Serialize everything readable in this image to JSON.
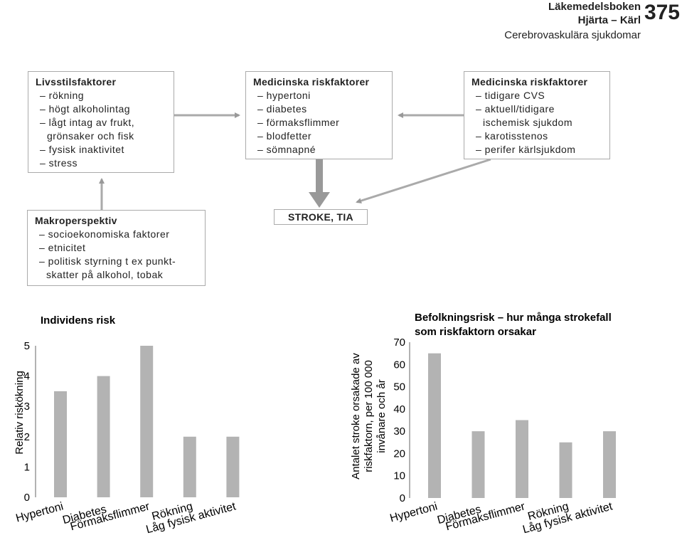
{
  "header": {
    "book": "Läkemedelsboken",
    "section": "Hjärta – Kärl",
    "chapter": "Cerebrovaskulära sjukdomar",
    "page": "375"
  },
  "boxes": [
    {
      "title": "Livsstilsfaktorer",
      "items": [
        "– rökning",
        "– högt alkoholintag",
        "– lågt intag av frukt, grönsaker och fisk",
        "– fysisk inaktivitet",
        "– stress"
      ]
    },
    {
      "title": "Medicinska riskfaktorer",
      "items": [
        "– hypertoni",
        "– diabetes",
        "– förmaksflimmer",
        "– blodfetter",
        "– sömnapné"
      ]
    },
    {
      "title": "Medicinska riskfaktorer",
      "items": [
        "– tidigare CVS",
        "– aktuell/tidigare ischemisk sjukdom",
        "– karotisstenos",
        "– perifer kärlsjukdom"
      ]
    },
    {
      "title": "Makroperspektiv",
      "items": [
        "– socioekonomiska faktorer",
        "– etnicitet",
        "– politisk styrning t ex punkt-skatter på alkohol, tobak"
      ]
    },
    {
      "title": "STROKE, TIA",
      "items": []
    }
  ],
  "chart_data": [
    {
      "type": "bar",
      "title": "Individens risk",
      "ylabel": [
        "Relativ riskökning"
      ],
      "categories": [
        "Hypertoni",
        "Diabetes",
        "Förmaksflimmer",
        "Rökning",
        "Låg fysisk aktivitet"
      ],
      "values": [
        3.5,
        4,
        5,
        2,
        2
      ],
      "color": "#b3b3b3",
      "ylim": [
        0,
        5
      ],
      "yticks": [
        0,
        1,
        2,
        3,
        4,
        5
      ],
      "grid": false
    },
    {
      "type": "bar",
      "title": [
        "Befolkningsrisk – hur många strokefall",
        "som riskfaktorn orsakar"
      ],
      "ylabel": [
        "Antalet stroke orsakade av",
        "riskfaktorn, per 100 000",
        "invånare och år"
      ],
      "categories": [
        "Hypertoni",
        "Diabetes",
        "Förmaksflimmer",
        "Rökning",
        "Låg fysisk aktivitet"
      ],
      "values": [
        65,
        30,
        35,
        25,
        30
      ],
      "color": "#b3b3b3",
      "ylim": [
        0,
        70
      ],
      "yticks": [
        0,
        10,
        20,
        30,
        40,
        50,
        60,
        70
      ],
      "grid": false
    }
  ]
}
